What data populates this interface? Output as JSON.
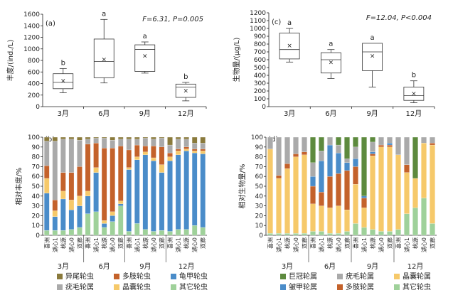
{
  "chart_data": [
    {
      "panel": "(a)",
      "type": "box",
      "ylabel": "丰度/(ind./L)",
      "ylim": [
        0,
        1600
      ],
      "yticks": [
        0,
        200,
        400,
        600,
        800,
        1000,
        1200,
        1400,
        1600
      ],
      "categories": [
        "3月",
        "6月",
        "9月",
        "12月"
      ],
      "boxes": [
        {
          "min": 240,
          "q1": 310,
          "median": 420,
          "q3": 570,
          "max": 660,
          "mean": 450,
          "letter": "b"
        },
        {
          "min": 410,
          "q1": 500,
          "median": 780,
          "q3": 1170,
          "max": 1510,
          "mean": 820,
          "letter": "a"
        },
        {
          "min": 580,
          "q1": 610,
          "median": 990,
          "q3": 1070,
          "max": 1120,
          "mean": 880,
          "letter": "a"
        },
        {
          "min": 100,
          "q1": 160,
          "median": 340,
          "q3": 390,
          "max": 420,
          "mean": 280,
          "letter": "b"
        }
      ],
      "stats": {
        "F": "F=6.31",
        "P": "P=0.005"
      }
    },
    {
      "panel": "(c)",
      "type": "box",
      "ylabel": "生物量/(μg/L)",
      "ylim": [
        0,
        1200
      ],
      "yticks": [
        0,
        100,
        200,
        300,
        400,
        500,
        600,
        700,
        800,
        900,
        1000,
        1100,
        1200
      ],
      "categories": [
        "3月",
        "6月",
        "9月",
        "12月"
      ],
      "boxes": [
        {
          "min": 570,
          "q1": 610,
          "median": 730,
          "q3": 940,
          "max": 1000,
          "mean": 780,
          "letter": "a"
        },
        {
          "min": 360,
          "q1": 430,
          "median": 600,
          "q3": 690,
          "max": 730,
          "mean": 570,
          "letter": "a"
        },
        {
          "min": 250,
          "q1": 460,
          "median": 700,
          "q3": 810,
          "max": 810,
          "mean": 650,
          "letter": "a"
        },
        {
          "min": 50,
          "q1": 80,
          "median": 140,
          "q3": 250,
          "max": 330,
          "mean": 170,
          "letter": "b"
        }
      ],
      "stats": {
        "F": "F=12.04",
        "P": "P<0.004"
      }
    },
    {
      "panel": "(b)",
      "type": "stacked_bar",
      "ylabel": "相对丰度/%",
      "ylim": [
        0,
        100
      ],
      "yticks": [
        0,
        10,
        20,
        30,
        40,
        50,
        60,
        70,
        80,
        90,
        100
      ],
      "sites": [
        "喜洲",
        "湖心1",
        "桃源",
        "湖心0",
        "双廊"
      ],
      "months": [
        "3月",
        "6月",
        "9月",
        "12月"
      ],
      "series_names": [
        "异尾轮虫",
        "多肢轮虫",
        "龟甲轮虫",
        "疣毛轮属",
        "晶囊轮虫",
        "其它轮虫"
      ],
      "series_order_bottom_up": [
        "其它轮虫",
        "龟甲轮虫",
        "晶囊轮虫",
        "多肢轮虫",
        "疣毛轮属",
        "异尾轮虫"
      ],
      "colors": {
        "异尾轮虫": "#8a7a3c",
        "多肢轮虫": "#c4622b",
        "龟甲轮虫": "#4a8cc9",
        "疣毛轮属": "#aaaaaa",
        "晶囊轮虫": "#f6c96a",
        "其它轮虫": "#9fd19a"
      },
      "bars": [
        [
          5,
          38,
          15,
          13,
          25,
          4
        ],
        [
          5,
          14,
          6,
          11,
          60,
          4
        ],
        [
          5,
          32,
          8,
          19,
          34,
          2
        ],
        [
          6,
          20,
          10,
          28,
          34,
          2
        ],
        [
          8,
          22,
          10,
          30,
          27,
          3
        ],
        [
          22,
          18,
          5,
          48,
          5,
          2
        ],
        [
          24,
          40,
          5,
          25,
          5,
          1
        ],
        [
          8,
          4,
          3,
          74,
          10,
          1
        ],
        [
          14,
          6,
          4,
          65,
          8,
          3
        ],
        [
          30,
          2,
          3,
          56,
          7,
          2
        ],
        [
          4,
          63,
          2,
          18,
          11,
          2
        ],
        [
          12,
          65,
          3,
          12,
          6,
          2
        ],
        [
          6,
          76,
          3,
          6,
          8,
          1
        ],
        [
          4,
          72,
          3,
          12,
          7,
          2
        ],
        [
          5,
          59,
          8,
          18,
          9,
          1
        ],
        [
          4,
          72,
          4,
          4,
          8,
          8
        ],
        [
          6,
          76,
          4,
          2,
          10,
          2
        ],
        [
          6,
          80,
          2,
          2,
          8,
          2
        ],
        [
          10,
          74,
          2,
          2,
          6,
          6
        ],
        [
          8,
          75,
          3,
          2,
          6,
          6
        ]
      ]
    },
    {
      "panel": "(d)",
      "type": "stacked_bar",
      "ylabel": "相对生物量/%",
      "ylim": [
        0,
        100
      ],
      "yticks": [
        0,
        10,
        20,
        30,
        40,
        50,
        60,
        70,
        80,
        90,
        100
      ],
      "sites": [
        "喜洲",
        "湖心1",
        "桃源",
        "湖心0",
        "双廊"
      ],
      "months": [
        "3月",
        "6月",
        "9月",
        "12月"
      ],
      "series_names": [
        "巨冠轮属",
        "疣毛轮属",
        "晶囊轮属",
        "皱甲轮属",
        "多肢轮属",
        "其它轮虫"
      ],
      "series_order_bottom_up": [
        "其它轮虫",
        "晶囊轮属",
        "多肢轮属",
        "皱甲轮属",
        "疣毛轮属",
        "巨冠轮属"
      ],
      "colors": {
        "巨冠轮属": "#5d8a3e",
        "疣毛轮属": "#aaaaaa",
        "晶囊轮属": "#f6c96a",
        "皱甲轮属": "#4a8cc9",
        "多肢轮属": "#c4622b",
        "其它轮虫": "#9fd19a"
      },
      "bars": [
        [
          2,
          86,
          0,
          0,
          12,
          0
        ],
        [
          2,
          56,
          3,
          0,
          39,
          0
        ],
        [
          2,
          66,
          5,
          0,
          27,
          0
        ],
        [
          2,
          78,
          3,
          0,
          17,
          0
        ],
        [
          2,
          80,
          3,
          0,
          15,
          0
        ],
        [
          4,
          28,
          18,
          10,
          14,
          26
        ],
        [
          4,
          26,
          14,
          32,
          10,
          14
        ],
        [
          2,
          26,
          32,
          32,
          8,
          0
        ],
        [
          2,
          28,
          33,
          21,
          8,
          8
        ],
        [
          4,
          22,
          40,
          8,
          4,
          22
        ],
        [
          12,
          40,
          18,
          8,
          12,
          10
        ],
        [
          8,
          20,
          10,
          2,
          0,
          60
        ],
        [
          6,
          75,
          2,
          2,
          10,
          5
        ],
        [
          4,
          86,
          2,
          0,
          8,
          0
        ],
        [
          4,
          86,
          2,
          2,
          6,
          0
        ],
        [
          6,
          76,
          0,
          0,
          18,
          0
        ],
        [
          22,
          42,
          8,
          0,
          28,
          0
        ],
        [
          28,
          30,
          0,
          0,
          0,
          42
        ],
        [
          38,
          56,
          0,
          0,
          6,
          0
        ],
        [
          12,
          80,
          2,
          0,
          6,
          0
        ]
      ]
    }
  ]
}
